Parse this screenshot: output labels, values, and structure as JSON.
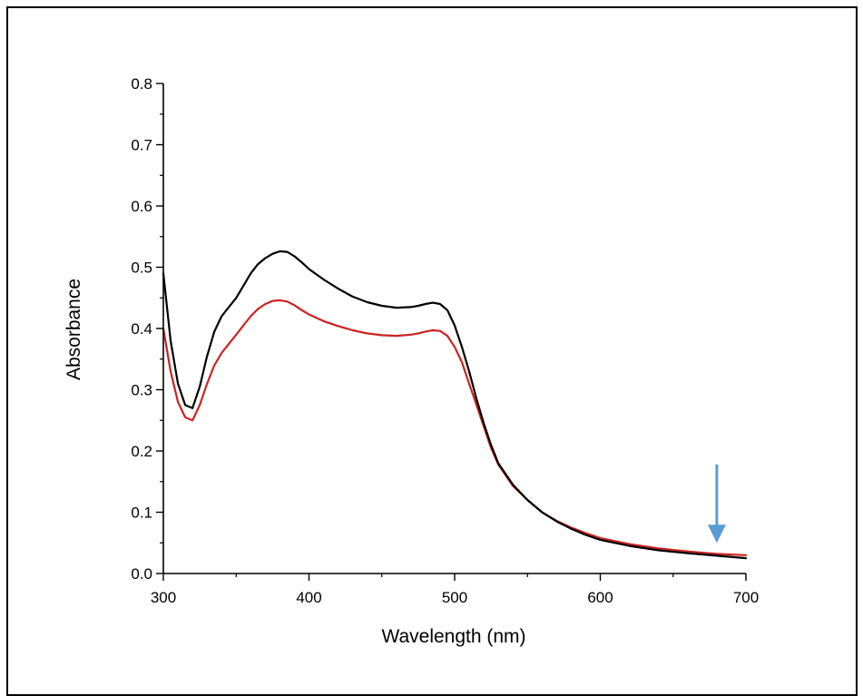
{
  "chart_data": {
    "type": "line",
    "title": "",
    "xlabel": "Wavelength (nm)",
    "ylabel": "Absorbance",
    "xlim": [
      300,
      700
    ],
    "ylim": [
      0.0,
      0.8
    ],
    "x_ticks": [
      300,
      400,
      500,
      600,
      700
    ],
    "x_tick_labels": [
      "300",
      "400",
      "500",
      "600",
      "700"
    ],
    "y_ticks": [
      0.0,
      0.1,
      0.2,
      0.3,
      0.4,
      0.5,
      0.6,
      0.7,
      0.8
    ],
    "y_tick_labels": [
      "0.0",
      "0.1",
      "0.2",
      "0.3",
      "0.4",
      "0.5",
      "0.6",
      "0.7",
      "0.8"
    ],
    "grid": false,
    "legend": "none",
    "annotations": [
      {
        "type": "arrow",
        "direction": "down",
        "x": 680,
        "y_from": 0.178,
        "y_to": 0.05,
        "color": "#5b9bd5"
      }
    ],
    "series": [
      {
        "color": "#000000",
        "x": [
          300,
          305,
          310,
          315,
          320,
          325,
          330,
          335,
          340,
          345,
          350,
          355,
          360,
          365,
          370,
          375,
          380,
          385,
          390,
          395,
          400,
          410,
          420,
          430,
          440,
          450,
          460,
          470,
          475,
          480,
          485,
          490,
          495,
          500,
          505,
          510,
          515,
          520,
          525,
          530,
          540,
          550,
          560,
          570,
          580,
          590,
          600,
          620,
          640,
          660,
          680,
          700
        ],
        "y": [
          0.49,
          0.38,
          0.31,
          0.275,
          0.27,
          0.305,
          0.355,
          0.395,
          0.42,
          0.435,
          0.45,
          0.47,
          0.49,
          0.505,
          0.515,
          0.522,
          0.526,
          0.525,
          0.518,
          0.508,
          0.497,
          0.48,
          0.465,
          0.452,
          0.443,
          0.437,
          0.434,
          0.435,
          0.437,
          0.44,
          0.442,
          0.44,
          0.43,
          0.405,
          0.37,
          0.33,
          0.285,
          0.245,
          0.21,
          0.18,
          0.145,
          0.12,
          0.1,
          0.085,
          0.073,
          0.063,
          0.055,
          0.045,
          0.038,
          0.033,
          0.029,
          0.025
        ]
      },
      {
        "color": "#cc2222",
        "x": [
          300,
          305,
          310,
          315,
          320,
          325,
          330,
          335,
          340,
          345,
          350,
          355,
          360,
          365,
          370,
          375,
          380,
          385,
          390,
          395,
          400,
          410,
          420,
          430,
          440,
          450,
          460,
          470,
          475,
          480,
          485,
          490,
          495,
          500,
          505,
          510,
          515,
          520,
          525,
          530,
          540,
          550,
          560,
          570,
          580,
          590,
          600,
          620,
          640,
          660,
          680,
          700
        ],
        "y": [
          0.4,
          0.33,
          0.28,
          0.255,
          0.25,
          0.275,
          0.31,
          0.34,
          0.36,
          0.375,
          0.39,
          0.405,
          0.42,
          0.432,
          0.44,
          0.445,
          0.446,
          0.444,
          0.438,
          0.43,
          0.423,
          0.412,
          0.404,
          0.397,
          0.392,
          0.389,
          0.388,
          0.39,
          0.392,
          0.395,
          0.397,
          0.396,
          0.388,
          0.37,
          0.345,
          0.31,
          0.275,
          0.24,
          0.205,
          0.178,
          0.143,
          0.12,
          0.1,
          0.086,
          0.075,
          0.066,
          0.058,
          0.048,
          0.041,
          0.036,
          0.032,
          0.03
        ]
      }
    ]
  }
}
